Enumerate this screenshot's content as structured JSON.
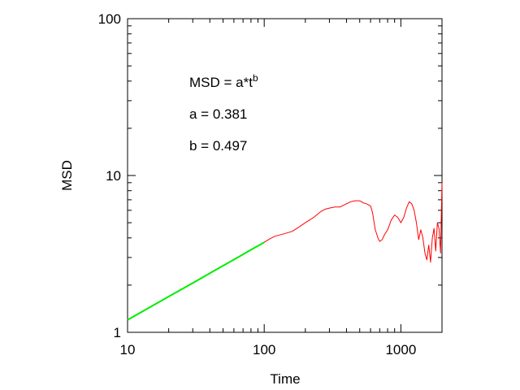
{
  "chart_data": {
    "type": "line",
    "xlabel": "Time",
    "ylabel": "MSD",
    "xscale": "log",
    "yscale": "log",
    "xlim": [
      10,
      2000
    ],
    "ylim": [
      1,
      100
    ],
    "x_ticks": [
      10,
      100,
      1000
    ],
    "x_tick_labels": [
      "10",
      "100",
      "1000"
    ],
    "y_ticks": [
      1,
      10,
      100
    ],
    "y_tick_labels": [
      "1",
      "10",
      "100"
    ],
    "grid": false,
    "annotations": {
      "formula": "MSD = a*t",
      "formula_sup": "b",
      "a_line": "a = 0.381",
      "b_line": "b = 0.497"
    },
    "series": [
      {
        "color": "#ff0000",
        "x": [
          10,
          12,
          15,
          20,
          25,
          30,
          40,
          50,
          60,
          70,
          80,
          90,
          100,
          110,
          120,
          140,
          160,
          180,
          200,
          230,
          260,
          280,
          300,
          330,
          360,
          400,
          430,
          460,
          500,
          530,
          560,
          600,
          620,
          650,
          680,
          700,
          730,
          760,
          800,
          850,
          900,
          950,
          1000,
          1050,
          1100,
          1150,
          1200,
          1250,
          1300,
          1350,
          1400,
          1450,
          1500,
          1550,
          1600,
          1650,
          1700,
          1750,
          1800,
          1850,
          1900,
          1950,
          2000
        ],
        "y": [
          1.2,
          1.31,
          1.46,
          1.69,
          1.88,
          2.06,
          2.38,
          2.66,
          2.92,
          3.14,
          3.35,
          3.56,
          3.75,
          3.95,
          4.1,
          4.25,
          4.4,
          4.7,
          5.0,
          5.4,
          5.9,
          6.1,
          6.2,
          6.3,
          6.3,
          6.6,
          6.8,
          6.9,
          6.9,
          6.7,
          6.6,
          6.4,
          5.8,
          4.5,
          4.0,
          3.8,
          3.9,
          4.2,
          4.5,
          5.2,
          5.6,
          5.4,
          5.0,
          5.4,
          6.2,
          6.8,
          6.6,
          6.0,
          5.0,
          3.9,
          4.5,
          4.0,
          3.2,
          2.9,
          3.6,
          2.8,
          4.0,
          4.6,
          3.3,
          5.0,
          4.6,
          3.2,
          9.0
        ]
      },
      {
        "color": "#00ee00",
        "x": [
          10,
          20,
          30,
          40,
          50,
          60,
          70,
          80,
          90,
          100
        ],
        "y": [
          1.2,
          1.69,
          2.06,
          2.38,
          2.66,
          2.91,
          3.14,
          3.36,
          3.56,
          3.75
        ]
      }
    ]
  }
}
